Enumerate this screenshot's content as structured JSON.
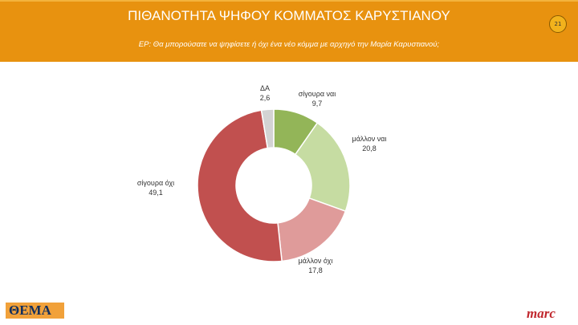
{
  "header": {
    "title": "ΠΙΘΑΝΟΤΗΤΑ ΨΗΦΟΥ ΚΟΜΜΑΤΟΣ ΚΑΡΥΣΤΙΑΝΟΥ",
    "subtitle": "ΕΡ: Θα μπορούσατε να ψηφίσετε ή όχι ένα νέο κόμμα με αρχηγό την Μαρία Καρυστιανού;",
    "page_number": "21"
  },
  "chart_data": {
    "type": "pie",
    "donut": true,
    "title": "",
    "categories": [
      "σίγουρα ναι",
      "μάλλον ναι",
      "μάλλον όχι",
      "σίγουρα όχι",
      "ΔΑ"
    ],
    "values": [
      9.7,
      20.8,
      17.8,
      49.1,
      2.6
    ],
    "value_labels": [
      "9,7",
      "20,8",
      "17,8",
      "49,1",
      "2,6"
    ],
    "colors": [
      "#93b558",
      "#c6dca2",
      "#df9b9a",
      "#c1504f",
      "#d3d3d3"
    ]
  },
  "footer": {
    "left_logo": "ΘΕΜΑ",
    "right_logo": "marc"
  }
}
